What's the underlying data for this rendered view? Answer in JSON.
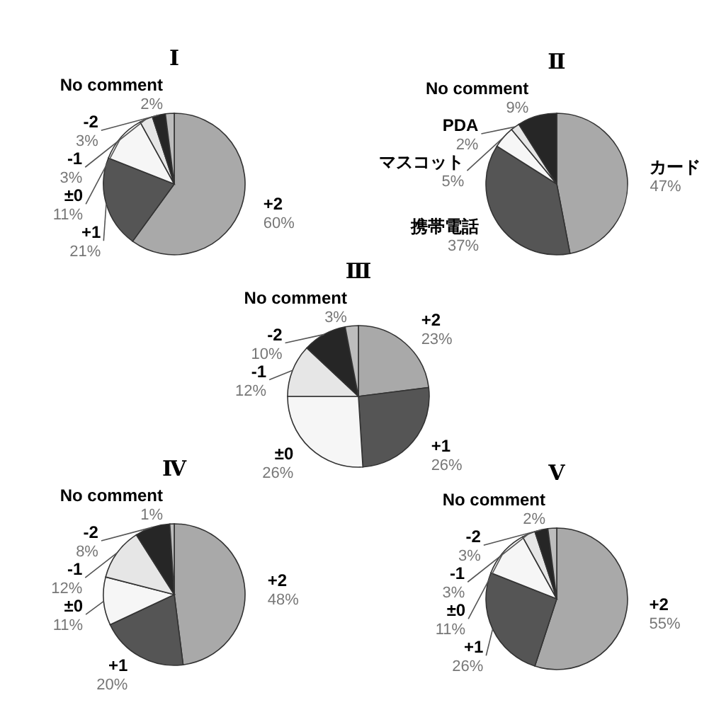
{
  "chart_data": [
    {
      "type": "pie",
      "title": "Ⅰ",
      "categories": [
        "+2",
        "+1",
        "±0",
        "-1",
        "-2",
        "No comment"
      ],
      "values": [
        60,
        21,
        11,
        3,
        3,
        2
      ],
      "value_labels": [
        "60%",
        "21%",
        "11%",
        "3%",
        "3%",
        "2%"
      ],
      "colors": [
        "#a9a9a9",
        "#555555",
        "#f6f6f6",
        "#e6e6e6",
        "#262626",
        "#bdbdbd"
      ]
    },
    {
      "type": "pie",
      "title": "Ⅱ",
      "categories": [
        "カード",
        "携帯電話",
        "マスコット",
        "PDA",
        "No comment"
      ],
      "values": [
        47,
        37,
        5,
        2,
        9
      ],
      "value_labels": [
        "47%",
        "37%",
        "5%",
        "2%",
        "9%"
      ],
      "colors": [
        "#a9a9a9",
        "#555555",
        "#f6f6f6",
        "#e6e6e6",
        "#262626"
      ]
    },
    {
      "type": "pie",
      "title": "Ⅲ",
      "categories": [
        "+2",
        "+1",
        "±0",
        "-1",
        "-2",
        "No comment"
      ],
      "values": [
        23,
        26,
        26,
        12,
        10,
        3
      ],
      "value_labels": [
        "23%",
        "26%",
        "26%",
        "12%",
        "10%",
        "3%"
      ],
      "colors": [
        "#a9a9a9",
        "#555555",
        "#f6f6f6",
        "#e6e6e6",
        "#262626",
        "#bdbdbd"
      ]
    },
    {
      "type": "pie",
      "title": "Ⅳ",
      "categories": [
        "+2",
        "+1",
        "±0",
        "-1",
        "-2",
        "No comment"
      ],
      "values": [
        48,
        20,
        11,
        12,
        8,
        1
      ],
      "value_labels": [
        "48%",
        "20%",
        "11%",
        "12%",
        "8%",
        "1%"
      ],
      "colors": [
        "#a9a9a9",
        "#555555",
        "#f6f6f6",
        "#e6e6e6",
        "#262626",
        "#bdbdbd"
      ]
    },
    {
      "type": "pie",
      "title": "Ⅴ",
      "categories": [
        "+2",
        "+1",
        "±0",
        "-1",
        "-2",
        "No comment"
      ],
      "values": [
        55,
        26,
        11,
        3,
        3,
        2
      ],
      "value_labels": [
        "55%",
        "26%",
        "11%",
        "3%",
        "3%",
        "2%"
      ],
      "colors": [
        "#a9a9a9",
        "#555555",
        "#f6f6f6",
        "#e6e6e6",
        "#262626",
        "#bdbdbd"
      ]
    }
  ]
}
